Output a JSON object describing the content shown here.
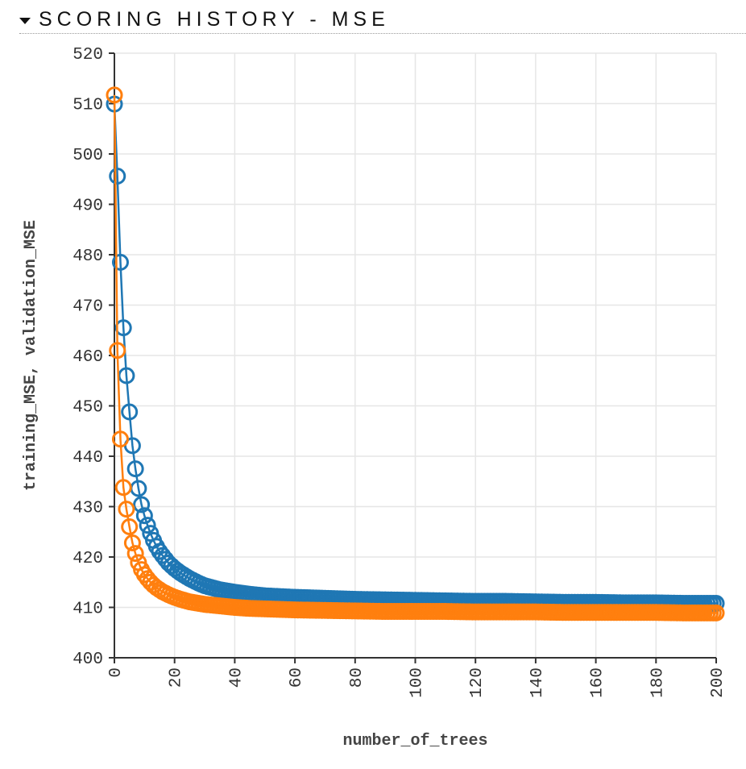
{
  "header": {
    "title": "SCORING HISTORY - MSE",
    "toggle_icon": "caret-down-icon"
  },
  "chart_data": {
    "type": "line",
    "xlabel": "number_of_trees",
    "ylabel": "training_MSE, validation_MSE",
    "xlim": [
      0,
      200
    ],
    "ylim": [
      400,
      520
    ],
    "xticks": [
      "0",
      "20",
      "40",
      "60",
      "80",
      "100",
      "120",
      "140",
      "160",
      "180",
      "200"
    ],
    "yticks": [
      "400",
      "410",
      "420",
      "430",
      "440",
      "450",
      "460",
      "470",
      "480",
      "490",
      "500",
      "510",
      "520"
    ],
    "grid": true,
    "markers": "open-circle",
    "series": [
      {
        "color": "#1f77b4",
        "x": [
          0,
          1,
          2,
          3,
          4,
          5,
          6,
          7,
          8,
          9,
          10,
          11,
          12,
          13,
          14,
          15,
          16,
          18,
          20,
          22,
          25,
          28,
          30,
          35,
          40,
          45,
          50,
          60,
          70,
          80,
          90,
          100,
          110,
          120,
          130,
          140,
          150,
          160,
          170,
          180,
          190,
          200
        ],
        "values": [
          509.9,
          495.6,
          478.5,
          465.5,
          456.0,
          448.8,
          442.1,
          437.5,
          433.6,
          430.4,
          428.2,
          426.3,
          424.7,
          423.3,
          422.1,
          421.1,
          420.3,
          418.8,
          417.7,
          416.8,
          415.7,
          414.8,
          414.3,
          413.5,
          413.0,
          412.6,
          412.3,
          412.0,
          411.8,
          411.6,
          411.5,
          411.4,
          411.3,
          411.2,
          411.2,
          411.1,
          411.0,
          411.0,
          410.9,
          410.9,
          410.8,
          410.8
        ]
      },
      {
        "color": "#ff7f0e",
        "x": [
          0,
          1,
          2,
          3,
          4,
          5,
          6,
          7,
          8,
          9,
          10,
          11,
          12,
          13,
          14,
          15,
          16,
          18,
          20,
          22,
          25,
          28,
          30,
          35,
          40,
          45,
          50,
          60,
          70,
          80,
          90,
          100,
          110,
          120,
          130,
          140,
          150,
          160,
          170,
          180,
          190,
          200
        ],
        "values": [
          511.7,
          461.0,
          443.4,
          433.8,
          429.5,
          426.0,
          422.8,
          420.7,
          418.9,
          417.5,
          416.5,
          415.7,
          415.0,
          414.4,
          413.9,
          413.5,
          413.1,
          412.5,
          412.0,
          411.6,
          411.1,
          410.8,
          410.6,
          410.3,
          410.0,
          409.8,
          409.7,
          409.5,
          409.4,
          409.3,
          409.2,
          409.2,
          409.2,
          409.1,
          409.1,
          409.1,
          409.0,
          409.0,
          409.0,
          409.0,
          408.9,
          408.9
        ]
      }
    ]
  }
}
